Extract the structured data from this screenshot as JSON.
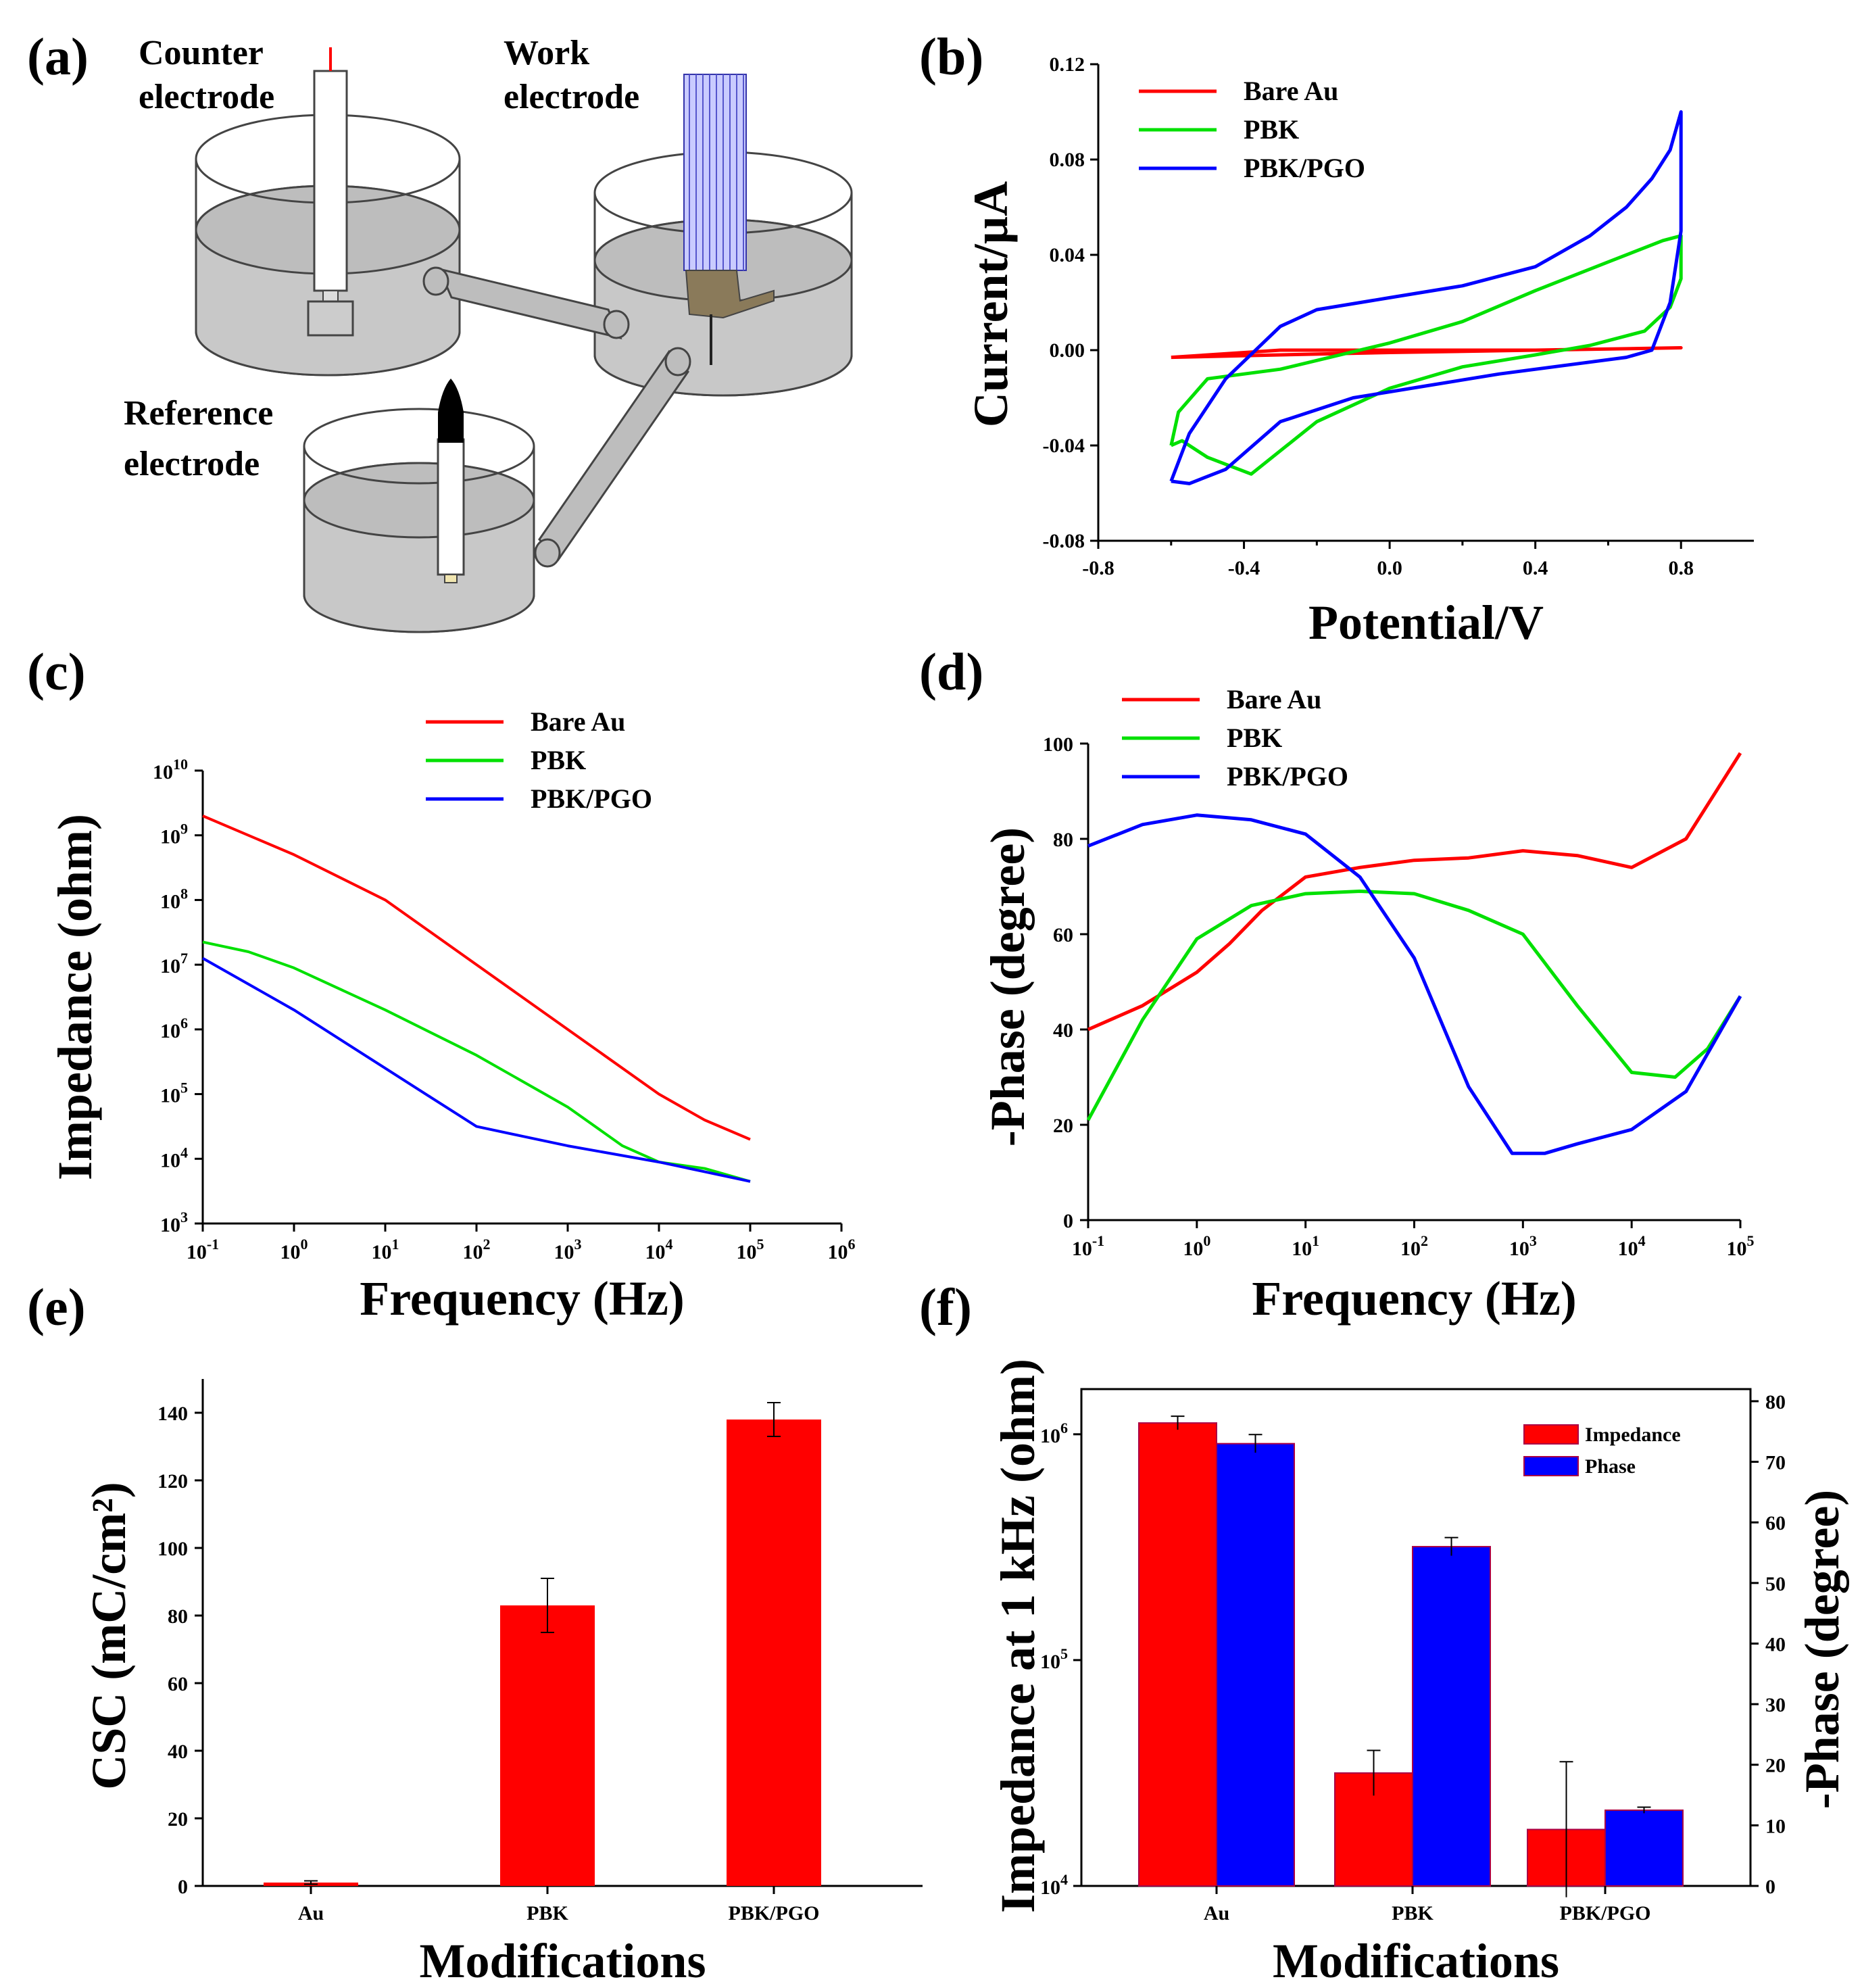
{
  "panels": {
    "a": "(a)",
    "b": "(b)",
    "c": "(c)",
    "d": "(d)",
    "e": "(e)",
    "f": "(f)"
  },
  "schematic": {
    "counter_line1": "Counter",
    "counter_line2": "electrode",
    "work_line1": "Work",
    "work_line2": "electrode",
    "reference_line1": "Reference",
    "reference_line2": "electrode"
  },
  "colors": {
    "bare_au": "#ff0000",
    "pbk": "#00e000",
    "pbk_pgo": "#0000ff",
    "bar_red": "#ff0000",
    "bar_blue": "#0000ff"
  },
  "chart_data": [
    {
      "id": "b",
      "type": "line",
      "xlabel": "Potential/V",
      "ylabel": "Current/µA",
      "xlim": [
        -0.8,
        1.0
      ],
      "ylim": [
        -0.08,
        0.12
      ],
      "xticks": [
        -0.8,
        -0.4,
        0.0,
        0.4,
        0.8
      ],
      "xtick_labels": [
        "-0.8",
        "-0.4",
        "0.0",
        "0.4",
        "0.8"
      ],
      "yticks": [
        -0.08,
        -0.04,
        0.0,
        0.04,
        0.08,
        0.12
      ],
      "ytick_labels": [
        "-0.08",
        "-0.04",
        "0.00",
        "0.04",
        "0.08",
        "0.12"
      ],
      "legend": [
        "Bare Au",
        "PBK",
        "PBK/PGO"
      ],
      "series": [
        {
          "name": "Bare Au",
          "color": "#ff0000",
          "points": [
            [
              -0.6,
              -0.003
            ],
            [
              -0.3,
              -0.002
            ],
            [
              0,
              -0.001
            ],
            [
              0.4,
              0
            ],
            [
              0.8,
              0.001
            ],
            [
              0.4,
              0
            ],
            [
              0,
              0
            ],
            [
              -0.3,
              0
            ],
            [
              -0.6,
              -0.003
            ]
          ]
        },
        {
          "name": "PBK",
          "color": "#00e000",
          "points": [
            [
              -0.6,
              -0.04
            ],
            [
              -0.58,
              -0.026
            ],
            [
              -0.5,
              -0.012
            ],
            [
              -0.3,
              -0.008
            ],
            [
              0,
              0.003
            ],
            [
              0.2,
              0.012
            ],
            [
              0.4,
              0.025
            ],
            [
              0.6,
              0.037
            ],
            [
              0.75,
              0.046
            ],
            [
              0.8,
              0.048
            ],
            [
              0.8,
              0.03
            ],
            [
              0.77,
              0.018
            ],
            [
              0.7,
              0.008
            ],
            [
              0.55,
              0.002
            ],
            [
              0.4,
              -0.002
            ],
            [
              0.2,
              -0.007
            ],
            [
              0,
              -0.016
            ],
            [
              -0.2,
              -0.03
            ],
            [
              -0.38,
              -0.052
            ],
            [
              -0.5,
              -0.045
            ],
            [
              -0.57,
              -0.038
            ],
            [
              -0.6,
              -0.04
            ]
          ]
        },
        {
          "name": "PBK/PGO",
          "color": "#0000ff",
          "points": [
            [
              -0.6,
              -0.055
            ],
            [
              -0.55,
              -0.035
            ],
            [
              -0.45,
              -0.012
            ],
            [
              -0.3,
              0.01
            ],
            [
              -0.2,
              0.017
            ],
            [
              0,
              0.022
            ],
            [
              0.2,
              0.027
            ],
            [
              0.4,
              0.035
            ],
            [
              0.55,
              0.048
            ],
            [
              0.65,
              0.06
            ],
            [
              0.72,
              0.072
            ],
            [
              0.77,
              0.084
            ],
            [
              0.8,
              0.1
            ],
            [
              0.8,
              0.05
            ],
            [
              0.77,
              0.02
            ],
            [
              0.72,
              0.0
            ],
            [
              0.65,
              -0.003
            ],
            [
              0.5,
              -0.006
            ],
            [
              0.3,
              -0.01
            ],
            [
              0.1,
              -0.015
            ],
            [
              -0.1,
              -0.02
            ],
            [
              -0.3,
              -0.03
            ],
            [
              -0.45,
              -0.05
            ],
            [
              -0.55,
              -0.056
            ],
            [
              -0.6,
              -0.055
            ]
          ]
        }
      ]
    },
    {
      "id": "c",
      "type": "line",
      "xscale": "log",
      "yscale": "log",
      "xlabel": "Frequency (Hz)",
      "ylabel": "Impedance (ohm)",
      "xlim_exp": [
        -1,
        6
      ],
      "ylim_exp": [
        3,
        10
      ],
      "xtick_exps": [
        "-1",
        "0",
        "1",
        "2",
        "3",
        "4",
        "5",
        "6"
      ],
      "ytick_exps": [
        "3",
        "4",
        "5",
        "6",
        "7",
        "8",
        "9",
        "10"
      ],
      "tick_base": "10",
      "legend": [
        "Bare Au",
        "PBK",
        "PBK/PGO"
      ],
      "series": [
        {
          "name": "Bare Au",
          "color": "#ff0000",
          "points_log": [
            [
              -1,
              9.3
            ],
            [
              0,
              8.7
            ],
            [
              1,
              8.0
            ],
            [
              2,
              7.0
            ],
            [
              3,
              6.0
            ],
            [
              4,
              5.0
            ],
            [
              4.5,
              4.6
            ],
            [
              5,
              4.3
            ]
          ]
        },
        {
          "name": "PBK",
          "color": "#00e000",
          "points_log": [
            [
              -1,
              7.35
            ],
            [
              -0.5,
              7.2
            ],
            [
              0,
              6.95
            ],
            [
              1,
              6.3
            ],
            [
              2,
              5.6
            ],
            [
              3,
              4.8
            ],
            [
              3.6,
              4.2
            ],
            [
              4,
              3.95
            ],
            [
              4.5,
              3.85
            ],
            [
              5,
              3.65
            ]
          ]
        },
        {
          "name": "PBK/PGO",
          "color": "#0000ff",
          "points_log": [
            [
              -1,
              7.1
            ],
            [
              0,
              6.3
            ],
            [
              1,
              5.4
            ],
            [
              1.5,
              4.95
            ],
            [
              2,
              4.5
            ],
            [
              2.5,
              4.35
            ],
            [
              3,
              4.2
            ],
            [
              4,
              3.95
            ],
            [
              4.5,
              3.8
            ],
            [
              5,
              3.65
            ]
          ]
        }
      ]
    },
    {
      "id": "d",
      "type": "line",
      "xscale": "log",
      "xlabel": "Frequency (Hz)",
      "ylabel": "-Phase (degree)",
      "xlim_exp": [
        -1,
        5
      ],
      "ylim": [
        0,
        100
      ],
      "xtick_exps": [
        "-1",
        "0",
        "1",
        "2",
        "3",
        "4",
        "5"
      ],
      "tick_base": "10",
      "yticks": [
        0,
        20,
        40,
        60,
        80,
        100
      ],
      "ytick_labels": [
        "0",
        "20",
        "40",
        "60",
        "80",
        "100"
      ],
      "legend": [
        "Bare Au",
        "PBK",
        "PBK/PGO"
      ],
      "series": [
        {
          "name": "Bare Au",
          "color": "#ff0000",
          "points": [
            [
              -1,
              40
            ],
            [
              -0.5,
              45
            ],
            [
              0,
              52
            ],
            [
              0.3,
              58
            ],
            [
              0.6,
              65
            ],
            [
              1,
              72
            ],
            [
              1.5,
              74
            ],
            [
              2,
              75.5
            ],
            [
              2.5,
              76
            ],
            [
              3,
              77.5
            ],
            [
              3.5,
              76.5
            ],
            [
              4,
              74
            ],
            [
              4.5,
              80
            ],
            [
              5,
              98
            ]
          ]
        },
        {
          "name": "PBK",
          "color": "#00e000",
          "points": [
            [
              -1,
              21
            ],
            [
              -0.5,
              42
            ],
            [
              0,
              59
            ],
            [
              0.5,
              66
            ],
            [
              1,
              68.5
            ],
            [
              1.5,
              69
            ],
            [
              2,
              68.5
            ],
            [
              2.5,
              65
            ],
            [
              3,
              60
            ],
            [
              3.5,
              45
            ],
            [
              4,
              31
            ],
            [
              4.4,
              30
            ],
            [
              4.7,
              36
            ],
            [
              5,
              47
            ]
          ]
        },
        {
          "name": "PBK/PGO",
          "color": "#0000ff",
          "points": [
            [
              -1,
              78.5
            ],
            [
              -0.5,
              83
            ],
            [
              0,
              85
            ],
            [
              0.5,
              84
            ],
            [
              1,
              81
            ],
            [
              1.5,
              72
            ],
            [
              2,
              55
            ],
            [
              2.5,
              28
            ],
            [
              2.9,
              14
            ],
            [
              3.2,
              14
            ],
            [
              3.5,
              16
            ],
            [
              4,
              19
            ],
            [
              4.5,
              27
            ],
            [
              5,
              47
            ]
          ]
        }
      ]
    },
    {
      "id": "e",
      "type": "bar",
      "xlabel": "Modifications",
      "ylabel": "CSC (mC/cm²)",
      "ylim": [
        0,
        150
      ],
      "yticks": [
        0,
        20,
        40,
        60,
        80,
        100,
        120,
        140
      ],
      "ytick_labels": [
        "0",
        "20",
        "40",
        "60",
        "80",
        "100",
        "120",
        "140"
      ],
      "categories": [
        "Au",
        "PBK",
        "PBK/PGO"
      ],
      "values": [
        1,
        83,
        138
      ],
      "errors": [
        0.5,
        8,
        5
      ],
      "color": "#ff0000"
    },
    {
      "id": "f",
      "type": "bar",
      "xlabel": "Modifications",
      "ylabel": "Impedance at 1 kHz (ohm)",
      "ylabel_right": "-Phase (degree)",
      "left_scale": "log",
      "left_ylim_exp": [
        4,
        6.2
      ],
      "left_tick_exps": [
        "4",
        "5",
        "6"
      ],
      "tick_base": "10",
      "right_ylim": [
        0,
        82
      ],
      "right_ticks": [
        0,
        10,
        20,
        30,
        40,
        50,
        60,
        70,
        80
      ],
      "right_tick_labels": [
        "0",
        "10",
        "20",
        "30",
        "40",
        "50",
        "60",
        "70",
        "80"
      ],
      "categories": [
        "Au",
        "PBK",
        "PBK/PGO"
      ],
      "legend": [
        "Impedance",
        "Phase"
      ],
      "series": [
        {
          "name": "Impedance",
          "axis": "left",
          "color": "#ff0000",
          "values_log": [
            6.05,
            4.5,
            4.25
          ],
          "errors_log": [
            0.03,
            0.1,
            0.3
          ]
        },
        {
          "name": "Phase",
          "axis": "right",
          "color": "#0000ff",
          "values": [
            73,
            56,
            12.5
          ],
          "errors": [
            1.5,
            1.5,
            0.5
          ]
        }
      ]
    }
  ]
}
